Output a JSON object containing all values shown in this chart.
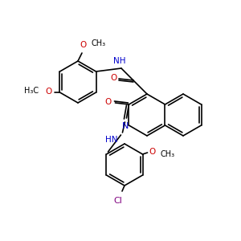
{
  "background": "#ffffff",
  "bond_color": "#000000",
  "N_color": "#0000cc",
  "O_color": "#cc0000",
  "Cl_color": "#800080",
  "lw": 1.2,
  "figsize": [
    3.0,
    3.0
  ],
  "dpi": 100,
  "xlim": [
    0,
    300
  ],
  "ylim": [
    0,
    300
  ]
}
